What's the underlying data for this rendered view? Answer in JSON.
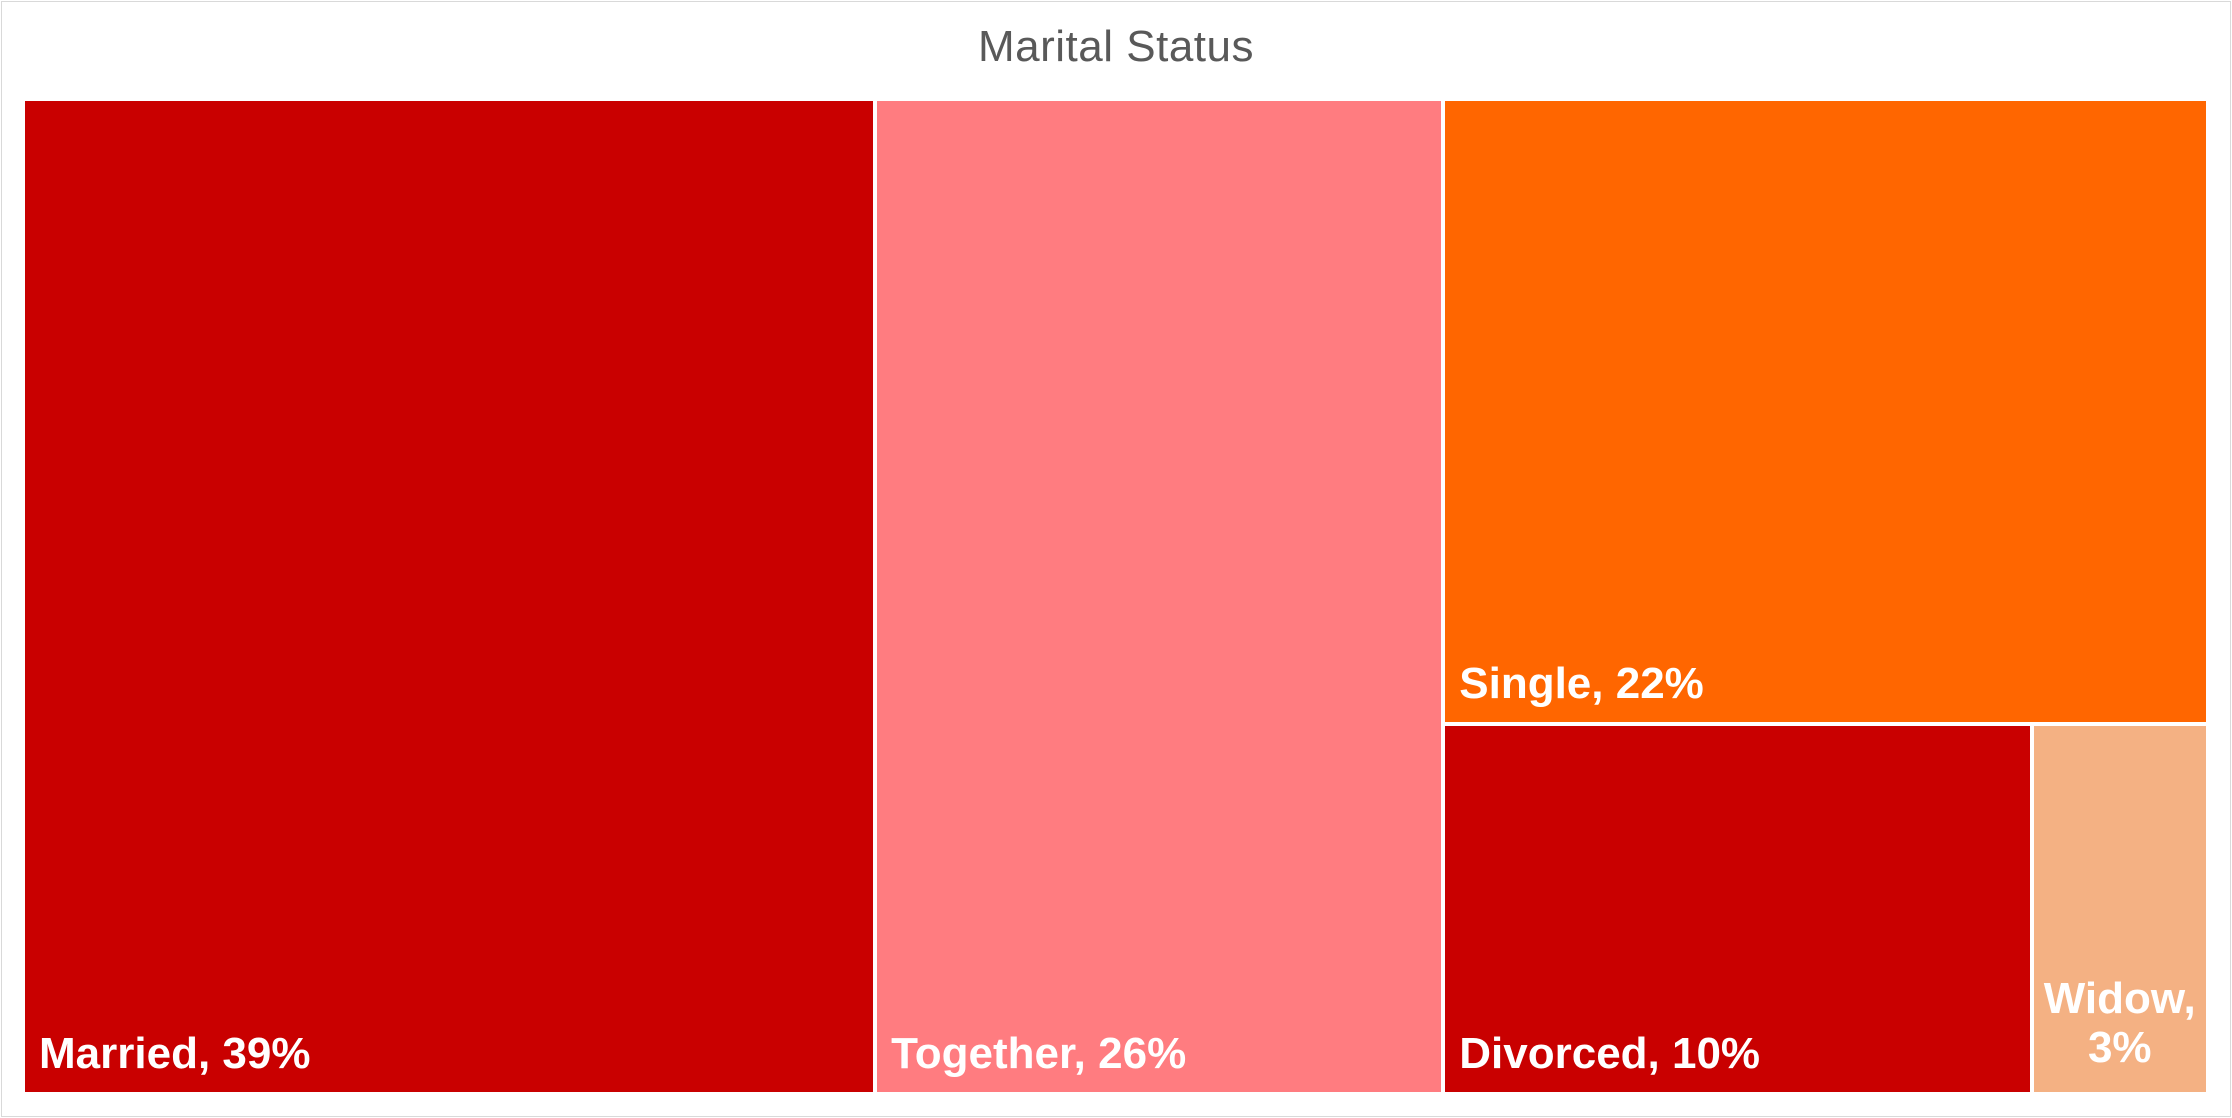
{
  "chart_data": {
    "type": "treemap",
    "title": "Marital Status",
    "categories": [
      "Married",
      "Together",
      "Single",
      "Divorced",
      "Widow"
    ],
    "values": [
      39,
      26,
      22,
      10,
      3
    ],
    "labels": [
      "Married, 39%",
      "Together, 26%",
      "Single, 22%",
      "Divorced, 10%",
      "Widow, 3%"
    ],
    "colors": [
      "#c90000",
      "#ff7c80",
      "#ff6600",
      "#c90000",
      "#f4b183"
    ]
  }
}
